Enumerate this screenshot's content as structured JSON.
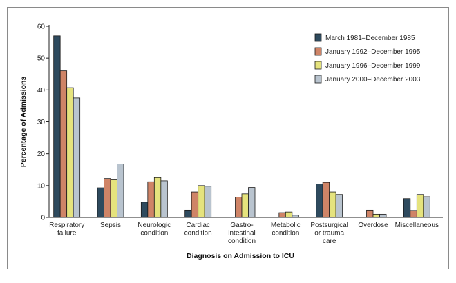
{
  "chart_data": {
    "type": "bar",
    "title": "",
    "xlabel": "Diagnosis on Admission to ICU",
    "ylabel": "Percentage of Admissions",
    "ylim": [
      0,
      60
    ],
    "yticks": [
      0,
      10,
      20,
      30,
      40,
      50,
      60
    ],
    "grid": false,
    "legend_position": "top-right",
    "categories": [
      [
        "Respiratory",
        "failure"
      ],
      [
        "Sepsis"
      ],
      [
        "Neurologic",
        "condition"
      ],
      [
        "Cardiac",
        "condition"
      ],
      [
        "Gastro-",
        "intestinal",
        "condition"
      ],
      [
        "Metabolic",
        "condition"
      ],
      [
        "Postsurgical",
        "or trauma",
        "care"
      ],
      [
        "Overdose"
      ],
      [
        "Miscellaneous"
      ]
    ],
    "series": [
      {
        "name": "March 1981–December 1985",
        "color": "#2e4a5e",
        "values": [
          57,
          9.3,
          4.8,
          2.3,
          0,
          0,
          10.5,
          0,
          5.9
        ]
      },
      {
        "name": "January 1992–December 1995",
        "color": "#cf8467",
        "values": [
          46,
          12.2,
          11.2,
          8.0,
          6.4,
          1.5,
          11.0,
          2.3,
          2.2
        ]
      },
      {
        "name": "January 1996–December 1999",
        "color": "#e5e37d",
        "values": [
          40.7,
          11.8,
          12.5,
          10.0,
          7.4,
          1.7,
          8.0,
          1.0,
          7.2
        ]
      },
      {
        "name": "January 2000–December 2003",
        "color": "#b9c4cf",
        "values": [
          37.5,
          16.8,
          11.5,
          9.8,
          9.4,
          0.7,
          7.2,
          1.0,
          6.5
        ]
      }
    ]
  }
}
